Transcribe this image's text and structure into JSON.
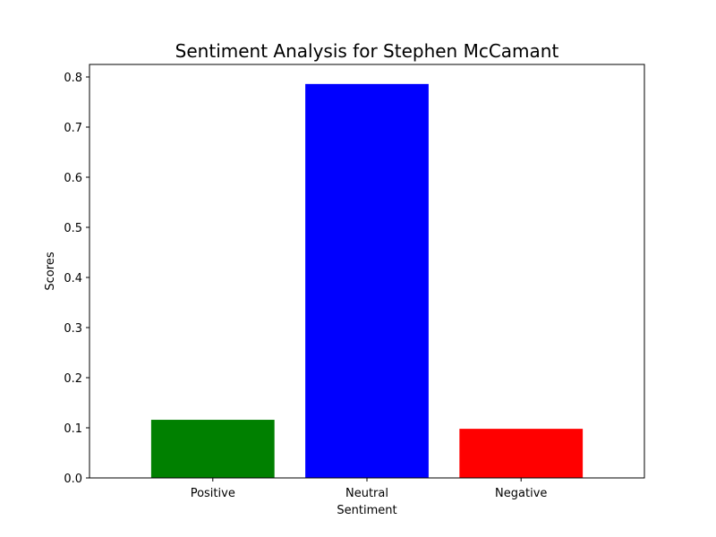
{
  "chart_data": {
    "type": "bar",
    "title": "Sentiment Analysis for Stephen McCamant",
    "xlabel": "Sentiment",
    "ylabel": "Scores",
    "categories": [
      "Positive",
      "Neutral",
      "Negative"
    ],
    "values": [
      0.116,
      0.786,
      0.098
    ],
    "colors": [
      "#008000",
      "#0000ff",
      "#ff0000"
    ],
    "ylim": [
      0,
      0.825
    ],
    "yticks": [
      "0.0",
      "0.1",
      "0.2",
      "0.3",
      "0.4",
      "0.5",
      "0.6",
      "0.7",
      "0.8"
    ],
    "grid": false
  }
}
